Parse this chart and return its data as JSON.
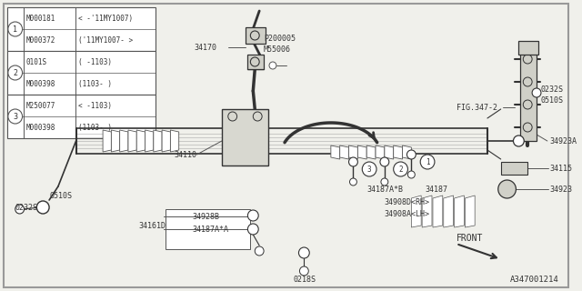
{
  "bg_color": "#f0f0eb",
  "line_color": "#555555",
  "dark_color": "#333333",
  "white": "#ffffff",
  "title_text": "A347001214",
  "table_rows": [
    {
      "num": "1",
      "col1": "M000181",
      "col2": "< -'11MY1007)"
    },
    {
      "num": "1",
      "col1": "M000372",
      "col2": "('11MY1007- >"
    },
    {
      "num": "2",
      "col1": "0101S",
      "col2": "( -1103)"
    },
    {
      "num": "2",
      "col1": "M000398",
      "col2": "(1103- )"
    },
    {
      "num": "3",
      "col1": "M250077",
      "col2": "< -1103)"
    },
    {
      "num": "3",
      "col1": "M000398",
      "col2": "(1103- )"
    }
  ],
  "img_path": null
}
